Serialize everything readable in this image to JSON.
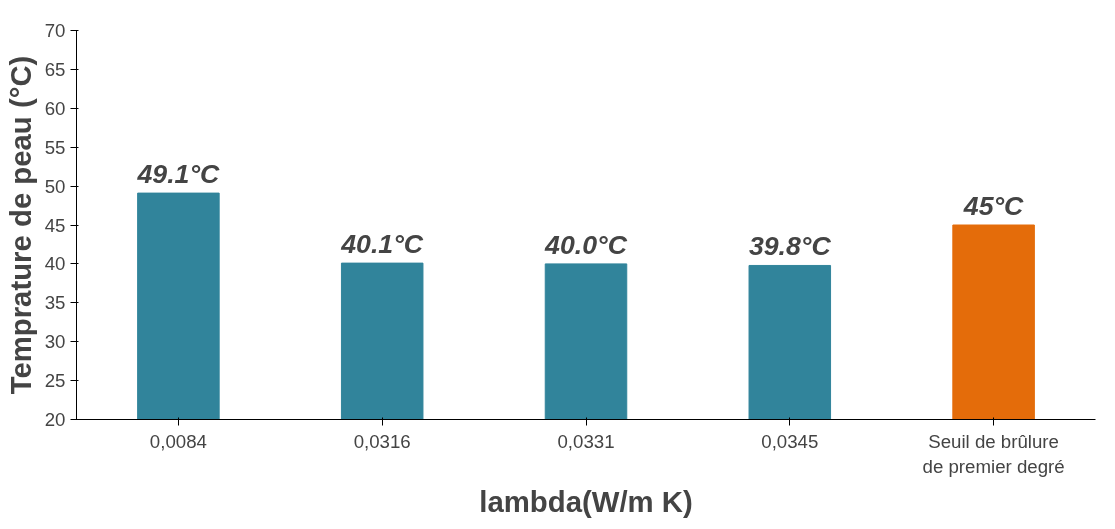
{
  "chart_data": {
    "type": "bar",
    "xlabel": "lambda(W/m K)",
    "ylabel": "Temprature de peau (°C)",
    "categories": [
      "0,0084",
      "0,0316",
      "0,0331",
      "0,0345",
      "Seuil de brûlure\nde premier degré"
    ],
    "values": [
      49.1,
      40.1,
      40.0,
      39.8,
      45
    ],
    "colors": [
      "#31849b",
      "#31849b",
      "#31849b",
      "#31849b",
      "#e46c0a"
    ],
    "value_labels": [
      "49.1°C",
      "40.1°C",
      "40.0°C",
      "39.8°C",
      "45°C"
    ],
    "ylim": [
      20,
      70
    ],
    "yticks": [
      20,
      25,
      30,
      35,
      40,
      45,
      50,
      55,
      60,
      65,
      70
    ],
    "grid": false
  }
}
